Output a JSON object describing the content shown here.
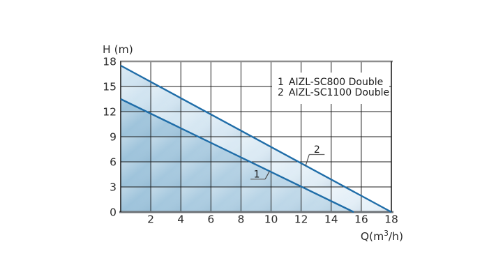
{
  "page": {
    "background": "#ffffff"
  },
  "chart_data": {
    "type": "line",
    "title": "",
    "xlabel": "Q(m³/h)",
    "xlabel_parts": {
      "pre": "Q(m",
      "sup": "3",
      "post": "/h)"
    },
    "ylabel": "H (m)",
    "xlim": [
      0,
      18
    ],
    "ylim": [
      0,
      18
    ],
    "x_ticks": [
      2,
      4,
      6,
      8,
      10,
      12,
      14,
      16,
      18
    ],
    "y_ticks": [
      0,
      3,
      6,
      9,
      12,
      15,
      18
    ],
    "grid": true,
    "legend": {
      "position": "top-right-inside",
      "entries": [
        "1 AIZL-SC800 Double",
        "2 AIZL-SC1100 Double"
      ]
    },
    "series": [
      {
        "id": "1",
        "name": "AIZL-SC800 Double",
        "points": [
          [
            0,
            13.5
          ],
          [
            15.5,
            0
          ]
        ],
        "area": true,
        "callout": {
          "x": 9.05,
          "y": 4.55,
          "side": "right"
        }
      },
      {
        "id": "2",
        "name": "AIZL-SC1100 Double",
        "points": [
          [
            0,
            17.5
          ],
          [
            18,
            0
          ]
        ],
        "area": true,
        "callout": {
          "x": 13.05,
          "y": 7.5,
          "side": "left"
        }
      }
    ],
    "colors": {
      "curve": "#1f6da8",
      "area_inner_left": "#9cc2da",
      "area_inner_right": "#cbe0ee",
      "area_outer_left": "#cfe3f0",
      "area_outer_right": "#e9f2f9",
      "grid": "#1c1c1c",
      "frame_top": "#8d8d8d",
      "frame_bottom": "#6d7276",
      "frame_side": "#111111",
      "text": "#2b2b2b"
    }
  }
}
